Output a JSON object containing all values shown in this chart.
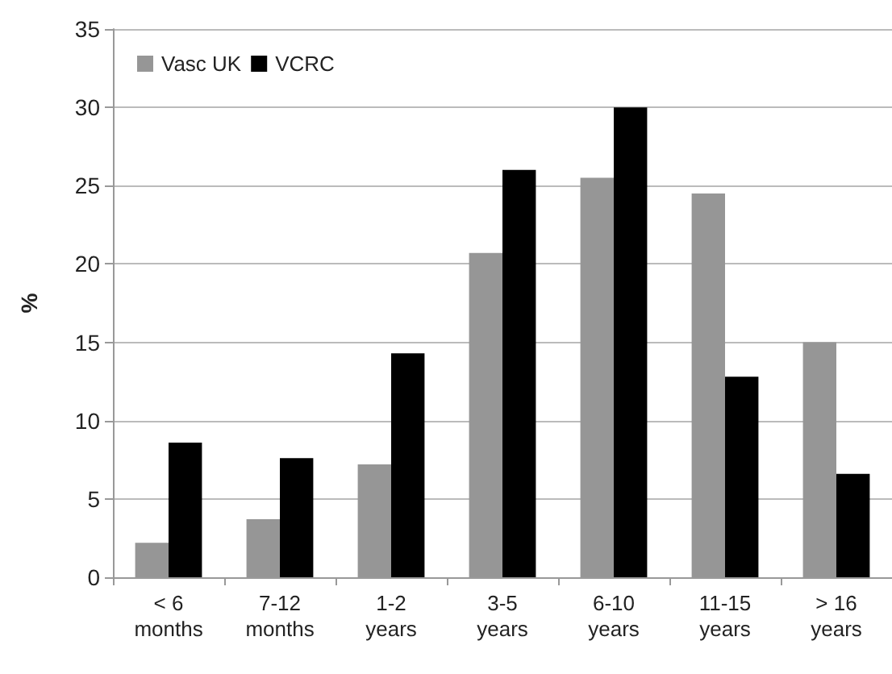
{
  "chart_data": {
    "type": "bar",
    "ylabel": "%",
    "categories": [
      "< 6\nmonths",
      "7-12\nmonths",
      "1-2\nyears",
      "3-5\nyears",
      "6-10\nyears",
      "11-15\nyears",
      "> 16\nyears"
    ],
    "series": [
      {
        "name": "Vasc UK",
        "color": "#969696",
        "values": [
          2.2,
          3.7,
          7.2,
          20.7,
          25.5,
          24.5,
          15.0
        ]
      },
      {
        "name": "VCRC",
        "color": "#000000",
        "values": [
          8.6,
          7.6,
          14.3,
          26.0,
          30.0,
          12.8,
          6.6
        ]
      }
    ],
    "ylim": [
      0,
      35
    ],
    "yticks": [
      0,
      5,
      10,
      15,
      20,
      25,
      30,
      35
    ],
    "grid": "y",
    "legend": "top left"
  }
}
